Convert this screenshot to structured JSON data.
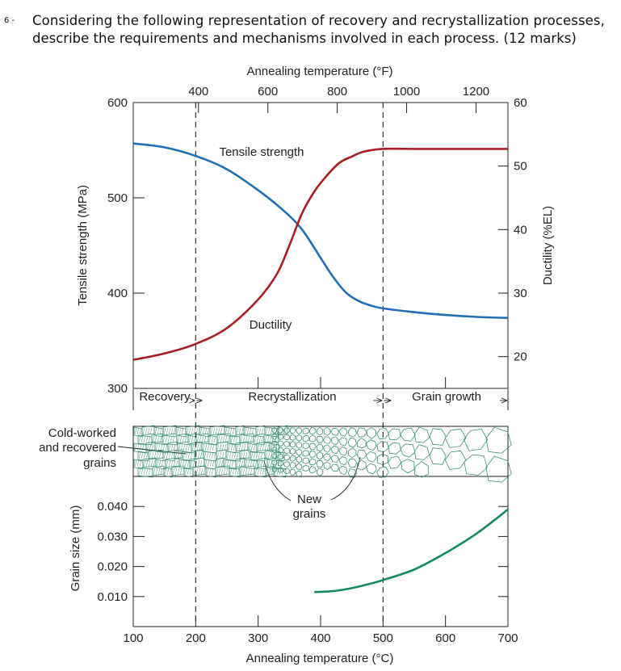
{
  "question": {
    "number": "6 -",
    "line1": "Considering the following representation of recovery and recrystallization processes,",
    "line2": "describe the requirements and mechanisms involved in each process. (12 marks)"
  },
  "chart_data": [
    {
      "type": "line",
      "title": "Annealing temperature (°F)",
      "top_axis_label": "Annealing temperature (°F)",
      "top_ticks": [
        400,
        600,
        800,
        1000,
        1200
      ],
      "x_range_c": [
        100,
        700
      ],
      "left_ylabel": "Tensile strength (MPa)",
      "left_ylim": [
        300,
        600
      ],
      "left_ticks": [
        300,
        400,
        500,
        600
      ],
      "right_ylabel": "Ductility (%EL)",
      "right_ylim": [
        15,
        60
      ],
      "right_ticks": [
        20,
        30,
        40,
        50,
        60
      ],
      "series": [
        {
          "name": "Tensile strength",
          "color": "#1f6fb2",
          "axis": "left",
          "x": [
            100,
            150,
            200,
            250,
            300,
            340,
            370,
            400,
            420,
            440,
            460,
            480,
            500,
            550,
            600,
            650,
            700
          ],
          "values": [
            557,
            553,
            544,
            530,
            508,
            487,
            467,
            437,
            417,
            401,
            392,
            387,
            384,
            380,
            377,
            375,
            374
          ]
        },
        {
          "name": "Ductility",
          "color": "#a81d22",
          "axis": "right",
          "x": [
            100,
            150,
            200,
            250,
            300,
            330,
            350,
            370,
            390,
            410,
            430,
            450,
            470,
            500,
            550,
            600,
            650,
            700
          ],
          "values": [
            19.5,
            20.5,
            22,
            24.5,
            29,
            33,
            37.5,
            42.5,
            46,
            48.5,
            50.5,
            51.5,
            52.3,
            52.7,
            52.7,
            52.7,
            52.7,
            52.7
          ]
        }
      ],
      "annotations": [
        "Tensile strength",
        "Ductility"
      ],
      "region_boundaries_c": [
        200,
        500
      ]
    },
    {
      "type": "line",
      "xlabel": "Annealing temperature (°C)",
      "x_ticks": [
        100,
        200,
        300,
        400,
        500,
        600,
        700
      ],
      "ylabel": "Grain size (mm)",
      "ylim": [
        0,
        0.05
      ],
      "y_ticks": [
        "0.010",
        "0.020",
        "0.030",
        "0.040"
      ],
      "series": [
        {
          "name": "Grain size",
          "color": "#128a5e",
          "x": [
            390,
            420,
            450,
            480,
            500,
            550,
            600,
            650,
            700
          ],
          "values": [
            0.0115,
            0.0118,
            0.0128,
            0.0143,
            0.0155,
            0.019,
            0.0245,
            0.031,
            0.039
          ]
        }
      ]
    }
  ],
  "regions": {
    "recovery": "Recovery",
    "recrystallization": "Recrystallization",
    "grain_growth": "Grain growth"
  },
  "micro_labels": {
    "cold_worked_1": "Cold-worked",
    "cold_worked_2": "and recovered",
    "cold_worked_3": "grains",
    "new_1": "New",
    "new_2": "grains"
  },
  "colors": {
    "strength": "#1f6fb2",
    "ductility": "#a81d22",
    "grain": "#128a5e",
    "micro": "#2e8a6a"
  }
}
